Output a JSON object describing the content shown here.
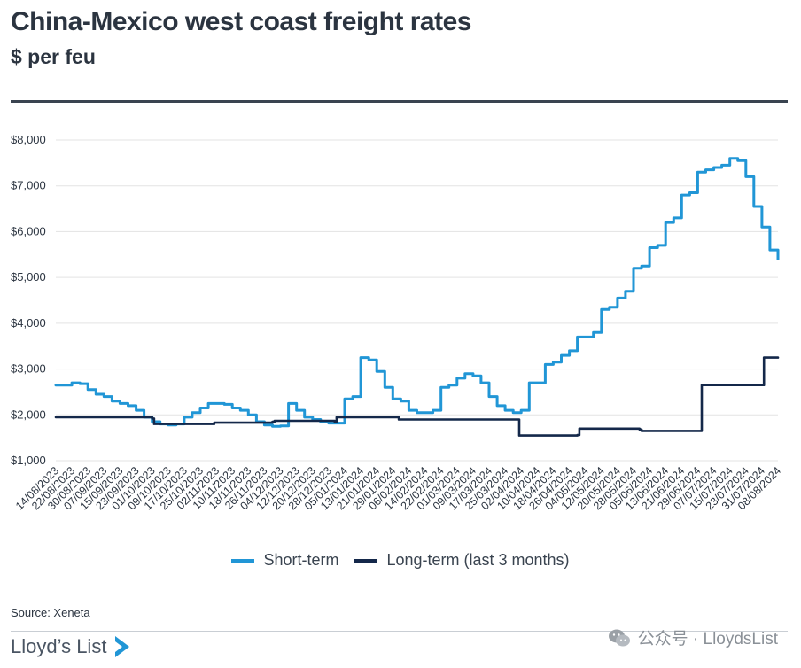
{
  "header": {
    "title": "China-Mexico west coast freight rates",
    "subtitle": "$ per feu"
  },
  "footer": {
    "source": "Source: Xeneta",
    "brand": "Lloyd’s List",
    "watermark": "公众号 · LloydsList"
  },
  "colors": {
    "short_term": "#2196d6",
    "long_term": "#14284a",
    "grid": "#e3e3e3",
    "text": "#2b3440"
  },
  "chart_data": {
    "type": "line",
    "title": "China-Mexico west coast freight rates",
    "subtitle": "$ per feu",
    "ylim": [
      1000,
      8000
    ],
    "y_ticks": [
      1000,
      2000,
      3000,
      4000,
      5000,
      6000,
      7000,
      8000
    ],
    "y_tick_labels": [
      "$1,000",
      "$2,000",
      "$3,000",
      "$4,000",
      "$5,000",
      "$6,000",
      "$7,000",
      "$8,000"
    ],
    "grid": "horizontal",
    "legend_position": "bottom",
    "x_ticks": [
      "14/08/2023",
      "22/08/2023",
      "30/08/2023",
      "07/09/2023",
      "15/09/2023",
      "23/09/2023",
      "01/10/2023",
      "09/10/2023",
      "17/10/2023",
      "25/10/2023",
      "02/11/2023",
      "10/11/2023",
      "18/11/2023",
      "26/11/2023",
      "04/12/2023",
      "12/12/2023",
      "20/12/2023",
      "28/12/2023",
      "05/01/2024",
      "13/01/2024",
      "21/01/2024",
      "29/01/2024",
      "06/02/2024",
      "14/02/2024",
      "22/02/2024",
      "01/03/2024",
      "09/03/2024",
      "17/03/2024",
      "25/03/2024",
      "02/04/2024",
      "10/04/2024",
      "18/04/2024",
      "26/04/2024",
      "04/05/2024",
      "12/05/2024",
      "20/05/2024",
      "28/05/2024",
      "05/06/2024",
      "13/06/2024",
      "21/06/2024",
      "29/06/2024",
      "07/07/2024",
      "15/07/2024",
      "23/07/2024",
      "31/07/2024",
      "08/08/2024"
    ],
    "series": [
      {
        "name": "Short-term",
        "x": [
          "14/08/2023",
          "18/08/2023",
          "22/08/2023",
          "26/08/2023",
          "30/08/2023",
          "03/09/2023",
          "07/09/2023",
          "11/09/2023",
          "15/09/2023",
          "19/09/2023",
          "23/09/2023",
          "27/09/2023",
          "01/10/2023",
          "05/10/2023",
          "09/10/2023",
          "13/10/2023",
          "17/10/2023",
          "21/10/2023",
          "25/10/2023",
          "29/10/2023",
          "02/11/2023",
          "06/11/2023",
          "10/11/2023",
          "14/11/2023",
          "18/11/2023",
          "22/11/2023",
          "26/11/2023",
          "30/11/2023",
          "04/12/2023",
          "08/12/2023",
          "12/12/2023",
          "16/12/2023",
          "20/12/2023",
          "24/12/2023",
          "28/12/2023",
          "01/01/2024",
          "05/01/2024",
          "09/01/2024",
          "13/01/2024",
          "17/01/2024",
          "21/01/2024",
          "25/01/2024",
          "29/01/2024",
          "02/02/2024",
          "06/02/2024",
          "10/02/2024",
          "14/02/2024",
          "18/02/2024",
          "22/02/2024",
          "26/02/2024",
          "01/03/2024",
          "05/03/2024",
          "09/03/2024",
          "13/03/2024",
          "17/03/2024",
          "21/03/2024",
          "25/03/2024",
          "29/03/2024",
          "02/04/2024",
          "06/04/2024",
          "10/04/2024",
          "14/04/2024",
          "18/04/2024",
          "22/04/2024",
          "26/04/2024",
          "30/04/2024",
          "04/05/2024",
          "08/05/2024",
          "12/05/2024",
          "16/05/2024",
          "20/05/2024",
          "24/05/2024",
          "28/05/2024",
          "01/06/2024",
          "05/06/2024",
          "09/06/2024",
          "13/06/2024",
          "17/06/2024",
          "21/06/2024",
          "25/06/2024",
          "29/06/2024",
          "03/07/2024",
          "07/07/2024",
          "11/07/2024",
          "15/07/2024",
          "19/07/2024",
          "23/07/2024",
          "27/07/2024",
          "31/07/2024",
          "04/08/2024",
          "08/08/2024"
        ],
        "values": [
          2650,
          2650,
          2700,
          2680,
          2550,
          2450,
          2400,
          2300,
          2250,
          2200,
          2100,
          1950,
          1850,
          1800,
          1780,
          1800,
          1950,
          2050,
          2150,
          2250,
          2250,
          2230,
          2150,
          2100,
          2000,
          1850,
          1780,
          1750,
          1760,
          2250,
          2100,
          1950,
          1900,
          1850,
          1820,
          1820,
          2350,
          2400,
          3250,
          3200,
          2950,
          2600,
          2350,
          2300,
          2100,
          2050,
          2050,
          2100,
          2600,
          2650,
          2800,
          2900,
          2850,
          2700,
          2400,
          2200,
          2100,
          2050,
          2100,
          2700,
          2700,
          3100,
          3150,
          3300,
          3400,
          3700,
          3700,
          3800,
          4300,
          4350,
          4550,
          4700,
          5200,
          5250,
          5650,
          5700,
          6200,
          6300,
          6800,
          6850,
          7300,
          7350,
          7400,
          7450,
          7600,
          7550,
          7200,
          6550,
          6100,
          5600,
          5400
        ]
      },
      {
        "name": "Long-term (last 3 months)",
        "x": [
          "14/08/2023",
          "01/09/2023",
          "01/10/2023",
          "02/10/2023",
          "31/10/2023",
          "01/11/2023",
          "30/11/2023",
          "01/12/2023",
          "31/12/2023",
          "01/01/2024",
          "31/01/2024",
          "01/02/2024",
          "31/03/2024",
          "01/04/2024",
          "30/04/2024",
          "01/05/2024",
          "31/05/2024",
          "01/06/2024",
          "30/06/2024",
          "01/07/2024",
          "31/07/2024",
          "01/08/2024",
          "08/08/2024"
        ],
        "values": [
          1950,
          1950,
          1920,
          1800,
          1800,
          1830,
          1850,
          1870,
          1850,
          1950,
          1950,
          1900,
          1900,
          1550,
          1560,
          1700,
          1680,
          1650,
          1650,
          2650,
          2650,
          3250,
          3250
        ]
      }
    ]
  }
}
